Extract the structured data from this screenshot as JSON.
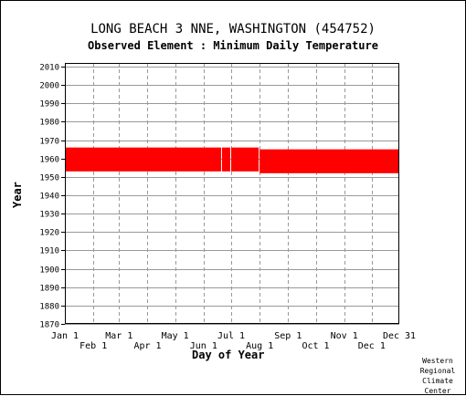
{
  "header": {
    "title": "LONG BEACH 3 NNE, WASHINGTON   (454752)",
    "subtitle": "Observed Element : Minimum Daily Temperature"
  },
  "credit": "Western Regional Climate Center",
  "chart_data": {
    "type": "scatter",
    "title": "LONG BEACH 3 NNE, WASHINGTON   (454752)",
    "subtitle": "Observed Element : Minimum Daily Temperature",
    "xlabel": "Day of Year",
    "ylabel": "Year",
    "xlim": [
      1,
      365
    ],
    "ylim": [
      1870,
      2012
    ],
    "grid": true,
    "x_ticks_upper": [
      {
        "label": "Jan 1",
        "day": 1
      },
      {
        "label": "Mar 1",
        "day": 60
      },
      {
        "label": "May 1",
        "day": 121
      },
      {
        "label": "Jul 1",
        "day": 182
      },
      {
        "label": "Sep 1",
        "day": 244
      },
      {
        "label": "Nov 1",
        "day": 305
      },
      {
        "label": "Dec 31",
        "day": 365
      }
    ],
    "x_ticks_lower": [
      {
        "label": "Feb 1",
        "day": 32
      },
      {
        "label": "Apr 1",
        "day": 91
      },
      {
        "label": "Jun 1",
        "day": 152
      },
      {
        "label": "Aug 1",
        "day": 213
      },
      {
        "label": "Oct 1",
        "day": 274
      },
      {
        "label": "Dec 1",
        "day": 335
      }
    ],
    "y_ticks": [
      1870,
      1880,
      1890,
      1900,
      1910,
      1920,
      1930,
      1940,
      1950,
      1960,
      1970,
      1980,
      1990,
      2000,
      2010
    ],
    "series": [
      {
        "color": "#ff0000",
        "ranges": [
          {
            "day_start": 1,
            "day_end": 171,
            "year_start": 1953,
            "year_end": 1966
          },
          {
            "day_start": 172,
            "day_end": 181,
            "year_start": 1953,
            "year_end": 1966
          },
          {
            "day_start": 182,
            "day_end": 212,
            "year_start": 1953,
            "year_end": 1966
          },
          {
            "day_start": 213,
            "day_end": 365,
            "year_start": 1952,
            "year_end": 1965
          }
        ]
      }
    ]
  }
}
